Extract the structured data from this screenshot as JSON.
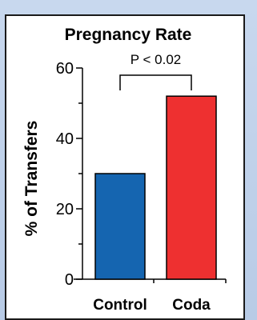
{
  "chart_data": {
    "type": "bar",
    "title": "Pregnancy Rate",
    "xlabel": "",
    "ylabel": "% of Transfers",
    "categories": [
      "Control",
      "Coda"
    ],
    "values": [
      30,
      52
    ],
    "colors": [
      "#1565b0",
      "#ee3030"
    ],
    "ylim": [
      0,
      60
    ],
    "yticks": [
      0,
      20,
      40,
      60
    ],
    "grid": false,
    "annotation": "P < 0.02"
  }
}
